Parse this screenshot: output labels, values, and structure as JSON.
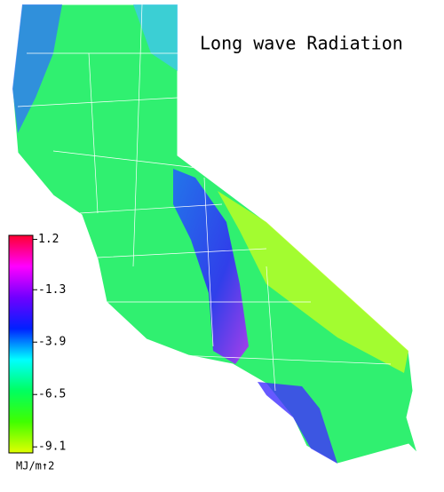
{
  "title": "Long wave Radiation",
  "colorbar": {
    "lim": [
      -9.4,
      1.4
    ],
    "ticks": [
      1.2,
      -1.3,
      -3.9,
      -6.5,
      -9.1
    ],
    "unit": "MJ/m↑2",
    "colors": [
      "#ff0030",
      "#ff00ff",
      "#7000ff",
      "#0020ff",
      "#00ffff",
      "#00ff60",
      "#40ff00",
      "#e0ff00"
    ]
  }
}
